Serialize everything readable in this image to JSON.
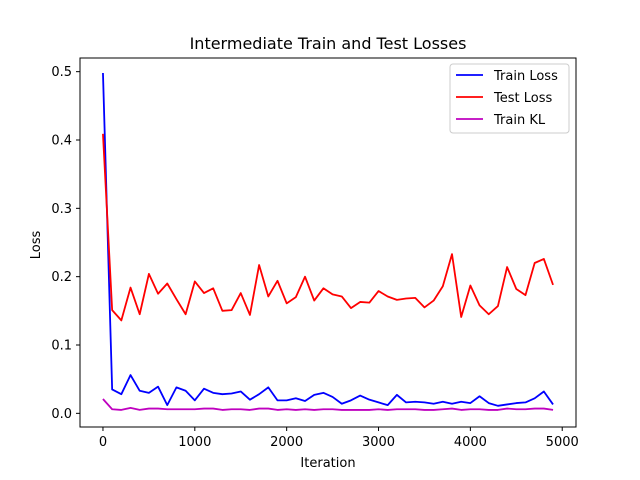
{
  "chart_data": {
    "type": "line",
    "title": "Intermediate Train and Test Losses",
    "xlabel": "Iteration",
    "ylabel": "Loss",
    "xlim": [
      -250,
      5150
    ],
    "ylim": [
      -0.02,
      0.52
    ],
    "xticks": [
      0,
      1000,
      2000,
      3000,
      4000,
      5000
    ],
    "yticks": [
      0.0,
      0.1,
      0.2,
      0.3,
      0.4,
      0.5
    ],
    "xtick_labels": [
      "0",
      "1000",
      "2000",
      "3000",
      "4000",
      "5000"
    ],
    "ytick_labels": [
      "0.0",
      "0.1",
      "0.2",
      "0.3",
      "0.4",
      "0.5"
    ],
    "grid": false,
    "legend_position": "top-right",
    "x": [
      0,
      100,
      200,
      300,
      400,
      500,
      600,
      700,
      800,
      900,
      1000,
      1100,
      1200,
      1300,
      1400,
      1500,
      1600,
      1700,
      1800,
      1900,
      2000,
      2100,
      2200,
      2300,
      2400,
      2500,
      2600,
      2700,
      2800,
      2900,
      3000,
      3100,
      3200,
      3300,
      3400,
      3500,
      3600,
      3700,
      3800,
      3900,
      4000,
      4100,
      4200,
      4300,
      4400,
      4500,
      4600,
      4700,
      4800,
      4900
    ],
    "series": [
      {
        "name": "Train Loss",
        "color": "#0000ff",
        "values": [
          0.498,
          0.035,
          0.028,
          0.056,
          0.033,
          0.03,
          0.039,
          0.012,
          0.038,
          0.033,
          0.019,
          0.036,
          0.03,
          0.028,
          0.029,
          0.032,
          0.02,
          0.028,
          0.038,
          0.019,
          0.019,
          0.022,
          0.018,
          0.027,
          0.03,
          0.024,
          0.014,
          0.019,
          0.026,
          0.02,
          0.016,
          0.012,
          0.027,
          0.016,
          0.017,
          0.016,
          0.014,
          0.017,
          0.014,
          0.017,
          0.015,
          0.025,
          0.015,
          0.011,
          0.013,
          0.015,
          0.016,
          0.022,
          0.032,
          0.013
        ]
      },
      {
        "name": "Test Loss",
        "color": "#ff0000",
        "values": [
          0.409,
          0.151,
          0.136,
          0.184,
          0.145,
          0.204,
          0.175,
          0.19,
          0.167,
          0.145,
          0.193,
          0.176,
          0.183,
          0.15,
          0.151,
          0.176,
          0.144,
          0.217,
          0.171,
          0.194,
          0.161,
          0.17,
          0.2,
          0.165,
          0.183,
          0.174,
          0.171,
          0.154,
          0.163,
          0.162,
          0.179,
          0.171,
          0.166,
          0.168,
          0.169,
          0.155,
          0.165,
          0.186,
          0.233,
          0.141,
          0.187,
          0.158,
          0.145,
          0.157,
          0.214,
          0.182,
          0.173,
          0.22,
          0.226,
          0.188
        ]
      },
      {
        "name": "Train KL",
        "color": "#bf00bf",
        "values": [
          0.021,
          0.006,
          0.005,
          0.008,
          0.005,
          0.007,
          0.007,
          0.006,
          0.006,
          0.006,
          0.006,
          0.007,
          0.007,
          0.005,
          0.006,
          0.006,
          0.005,
          0.007,
          0.007,
          0.005,
          0.006,
          0.005,
          0.006,
          0.005,
          0.006,
          0.006,
          0.005,
          0.005,
          0.005,
          0.005,
          0.006,
          0.005,
          0.006,
          0.006,
          0.006,
          0.005,
          0.005,
          0.006,
          0.007,
          0.005,
          0.006,
          0.006,
          0.005,
          0.005,
          0.007,
          0.006,
          0.006,
          0.007,
          0.007,
          0.005
        ]
      }
    ]
  }
}
